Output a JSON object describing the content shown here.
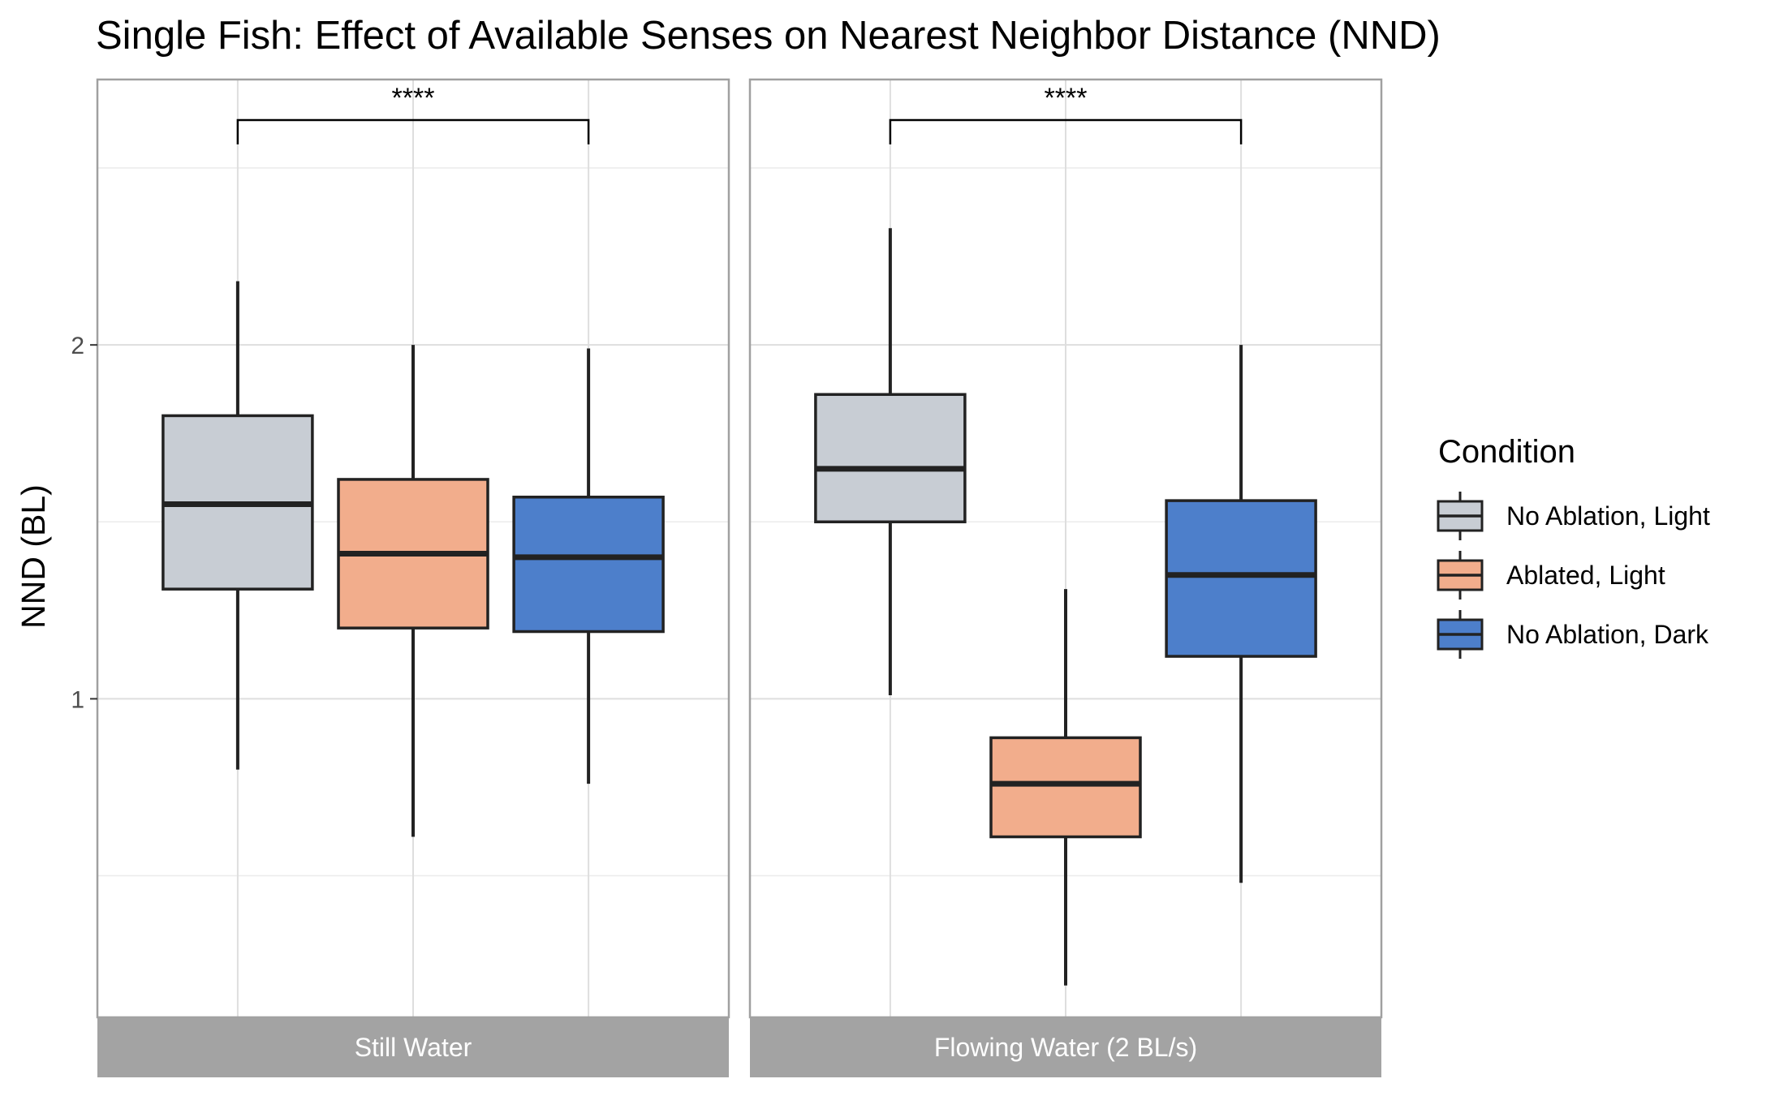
{
  "chart_data": {
    "type": "boxplot",
    "title": "Single Fish: Effect of Available Senses on Nearest Neighbor Distance (NND)",
    "ylabel": "NND (BL)",
    "xlabel": "",
    "ylim": [
      0.1,
      2.75
    ],
    "y_ticks": [
      1,
      2
    ],
    "y_tick_labels": [
      "1",
      "2"
    ],
    "grid": true,
    "legend_title": "Condition",
    "legend_position": "right",
    "conditions": [
      {
        "name": "No Ablation, Light",
        "color": "#c8cdd4"
      },
      {
        "name": "Ablated, Light",
        "color": "#f2ad8c"
      },
      {
        "name": "No Ablation, Dark",
        "color": "#4d7fcb"
      }
    ],
    "panels": [
      {
        "label": "Still Water",
        "significance": {
          "label": "****",
          "from": 0,
          "to": 2
        },
        "boxes": [
          {
            "condition": 0,
            "whisker_low": 0.8,
            "q1": 1.31,
            "median": 1.55,
            "q3": 1.8,
            "whisker_high": 2.18
          },
          {
            "condition": 1,
            "whisker_low": 0.61,
            "q1": 1.2,
            "median": 1.41,
            "q3": 1.62,
            "whisker_high": 2.0
          },
          {
            "condition": 2,
            "whisker_low": 0.76,
            "q1": 1.19,
            "median": 1.4,
            "q3": 1.57,
            "whisker_high": 1.99
          }
        ]
      },
      {
        "label": "Flowing Water (2 BL/s)",
        "significance": {
          "label": "****",
          "from": 0,
          "to": 2
        },
        "boxes": [
          {
            "condition": 0,
            "whisker_low": 1.01,
            "q1": 1.5,
            "median": 1.65,
            "q3": 1.86,
            "whisker_high": 2.33
          },
          {
            "condition": 1,
            "whisker_low": 0.19,
            "q1": 0.61,
            "median": 0.76,
            "q3": 0.89,
            "whisker_high": 1.31
          },
          {
            "condition": 2,
            "whisker_low": 0.48,
            "q1": 1.12,
            "median": 1.35,
            "q3": 1.56,
            "whisker_high": 2.0
          }
        ]
      }
    ]
  }
}
